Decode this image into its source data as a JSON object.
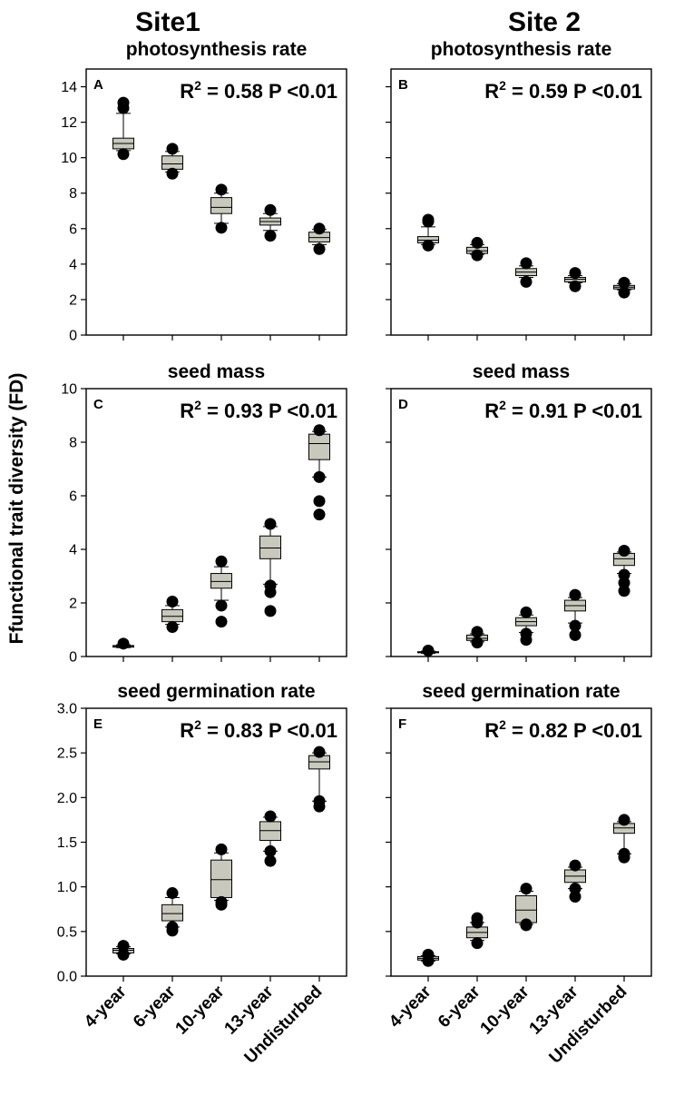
{
  "figure": {
    "ylabel": "Ffunctional trait diversity (FD)",
    "site_titles": [
      "Site1",
      "Site 2"
    ],
    "categories": [
      "4-year",
      "6-year",
      "10-year",
      "13-year",
      "Undisturbed"
    ]
  },
  "colors": {
    "box_fill": "#c8c8bd",
    "outline": "#000000"
  },
  "chart_data": [
    {
      "type": "box",
      "site": "Site1",
      "letter": "A",
      "title": "photosynthesis rate",
      "r2": "0.58",
      "p": "P <0.01",
      "ylim": [
        0,
        15
      ],
      "yticks": [
        0,
        2,
        4,
        6,
        8,
        10,
        12,
        14
      ],
      "categories": [
        "4-year",
        "6-year",
        "10-year",
        "13-year",
        "Undisturbed"
      ],
      "boxes": [
        {
          "whisker_low": 10.4,
          "q1": 10.5,
          "median": 10.8,
          "q3": 11.1,
          "whisker_high": 12.5,
          "outliers": [
            10.2,
            12.8,
            13.1
          ]
        },
        {
          "whisker_low": 9.2,
          "q1": 9.35,
          "median": 9.65,
          "q3": 10.1,
          "whisker_high": 10.35,
          "outliers": [
            9.1,
            10.5
          ]
        },
        {
          "whisker_low": 6.3,
          "q1": 6.85,
          "median": 7.2,
          "q3": 7.75,
          "whisker_high": 8.0,
          "outliers": [
            6.05,
            8.2
          ]
        },
        {
          "whisker_low": 5.9,
          "q1": 6.2,
          "median": 6.4,
          "q3": 6.6,
          "whisker_high": 6.85,
          "outliers": [
            5.6,
            7.05
          ]
        },
        {
          "whisker_low": 5.1,
          "q1": 5.25,
          "median": 5.5,
          "q3": 5.8,
          "whisker_high": 5.95,
          "outliers": [
            4.85,
            6.0
          ]
        }
      ]
    },
    {
      "type": "box",
      "site": "Site 2",
      "letter": "B",
      "title": "photosynthesis rate",
      "r2": "0.59",
      "p": "P <0.01",
      "ylim": [
        0,
        15
      ],
      "yticks": [
        0,
        2,
        4,
        6,
        8,
        10,
        12,
        14
      ],
      "categories": [
        "4-year",
        "6-year",
        "10-year",
        "13-year",
        "Undisturbed"
      ],
      "boxes": [
        {
          "whisker_low": 5.1,
          "q1": 5.2,
          "median": 5.35,
          "q3": 5.55,
          "whisker_high": 6.1,
          "outliers": [
            5.05,
            6.4,
            6.5
          ]
        },
        {
          "whisker_low": 4.55,
          "q1": 4.6,
          "median": 4.75,
          "q3": 4.95,
          "whisker_high": 5.1,
          "outliers": [
            4.5,
            5.2
          ]
        },
        {
          "whisker_low": 3.25,
          "q1": 3.35,
          "median": 3.55,
          "q3": 3.75,
          "whisker_high": 3.9,
          "outliers": [
            3.0,
            4.05
          ]
        },
        {
          "whisker_low": 2.95,
          "q1": 3.0,
          "median": 3.15,
          "q3": 3.25,
          "whisker_high": 3.35,
          "outliers": [
            2.75,
            3.5
          ]
        },
        {
          "whisker_low": 2.55,
          "q1": 2.6,
          "median": 2.7,
          "q3": 2.8,
          "whisker_high": 2.9,
          "outliers": [
            2.4,
            2.95
          ]
        }
      ]
    },
    {
      "type": "box",
      "site": "Site1",
      "letter": "C",
      "title": "seed mass",
      "r2": "0.93",
      "p": "P <0.01",
      "ylim": [
        0,
        10
      ],
      "yticks": [
        0,
        2,
        4,
        6,
        8,
        10
      ],
      "categories": [
        "4-year",
        "6-year",
        "10-year",
        "13-year",
        "Undisturbed"
      ],
      "boxes": [
        {
          "whisker_low": 0.33,
          "q1": 0.35,
          "median": 0.38,
          "q3": 0.41,
          "whisker_high": 0.44,
          "outliers": [
            0.48
          ]
        },
        {
          "whisker_low": 1.2,
          "q1": 1.3,
          "median": 1.5,
          "q3": 1.75,
          "whisker_high": 1.9,
          "outliers": [
            1.1,
            2.05
          ]
        },
        {
          "whisker_low": 2.1,
          "q1": 2.55,
          "median": 2.8,
          "q3": 3.1,
          "whisker_high": 3.35,
          "outliers": [
            1.3,
            1.9,
            3.55
          ]
        },
        {
          "whisker_low": 2.7,
          "q1": 3.65,
          "median": 4.05,
          "q3": 4.5,
          "whisker_high": 4.85,
          "outliers": [
            1.7,
            2.4,
            2.65,
            4.95
          ]
        },
        {
          "whisker_low": 6.7,
          "q1": 7.35,
          "median": 7.95,
          "q3": 8.3,
          "whisker_high": 8.4,
          "outliers": [
            5.3,
            5.8,
            6.7,
            8.45
          ]
        }
      ]
    },
    {
      "type": "box",
      "site": "Site 2",
      "letter": "D",
      "title": "seed mass",
      "r2": "0.91",
      "p": "P <0.01",
      "ylim": [
        0,
        10
      ],
      "yticks": [
        0,
        2,
        4,
        6,
        8,
        10
      ],
      "categories": [
        "4-year",
        "6-year",
        "10-year",
        "13-year",
        "Undisturbed"
      ],
      "boxes": [
        {
          "whisker_low": 0.12,
          "q1": 0.14,
          "median": 0.16,
          "q3": 0.18,
          "whisker_high": 0.2,
          "outliers": [
            0.22
          ]
        },
        {
          "whisker_low": 0.55,
          "q1": 0.6,
          "median": 0.68,
          "q3": 0.8,
          "whisker_high": 0.85,
          "outliers": [
            0.52,
            0.92
          ]
        },
        {
          "whisker_low": 0.9,
          "q1": 1.15,
          "median": 1.3,
          "q3": 1.45,
          "whisker_high": 1.55,
          "outliers": [
            0.62,
            0.85,
            1.65
          ]
        },
        {
          "whisker_low": 1.25,
          "q1": 1.7,
          "median": 1.9,
          "q3": 2.1,
          "whisker_high": 2.2,
          "outliers": [
            0.8,
            1.15,
            2.3
          ]
        },
        {
          "whisker_low": 3.1,
          "q1": 3.4,
          "median": 3.65,
          "q3": 3.85,
          "whisker_high": 3.9,
          "outliers": [
            2.45,
            2.75,
            3.05,
            3.95
          ]
        }
      ]
    },
    {
      "type": "box",
      "site": "Site1",
      "letter": "E",
      "title": "seed germination rate",
      "r2": "0.83",
      "p": "P <0.01",
      "ylim": [
        0,
        3.0
      ],
      "yticks": [
        0.0,
        0.5,
        1.0,
        1.5,
        2.0,
        2.5,
        3.0
      ],
      "yticklabels": [
        "0.0",
        "0.5",
        "1.0",
        "1.5",
        "2.0",
        "2.5",
        "3.0"
      ],
      "categories": [
        "4-year",
        "6-year",
        "10-year",
        "13-year",
        "Undisturbed"
      ],
      "boxes": [
        {
          "whisker_low": 0.25,
          "q1": 0.26,
          "median": 0.29,
          "q3": 0.31,
          "whisker_high": 0.33,
          "outliers": [
            0.24,
            0.34
          ]
        },
        {
          "whisker_low": 0.55,
          "q1": 0.62,
          "median": 0.7,
          "q3": 0.8,
          "whisker_high": 0.88,
          "outliers": [
            0.51,
            0.55,
            0.93
          ]
        },
        {
          "whisker_low": 0.85,
          "q1": 0.88,
          "median": 1.08,
          "q3": 1.3,
          "whisker_high": 1.38,
          "outliers": [
            0.8,
            0.83,
            1.42
          ]
        },
        {
          "whisker_low": 1.4,
          "q1": 1.52,
          "median": 1.63,
          "q3": 1.73,
          "whisker_high": 1.78,
          "outliers": [
            1.29,
            1.4,
            1.79
          ]
        },
        {
          "whisker_low": 1.96,
          "q1": 2.32,
          "median": 2.4,
          "q3": 2.47,
          "whisker_high": 2.5,
          "outliers": [
            1.9,
            1.96,
            2.51
          ]
        }
      ]
    },
    {
      "type": "box",
      "site": "Site 2",
      "letter": "F",
      "title": "seed germination rate",
      "r2": "0.82",
      "p": "P <0.01",
      "ylim": [
        0,
        3.0
      ],
      "yticks": [
        0.0,
        0.5,
        1.0,
        1.5,
        2.0,
        2.5,
        3.0
      ],
      "categories": [
        "4-year",
        "6-year",
        "10-year",
        "13-year",
        "Undisturbed"
      ],
      "boxes": [
        {
          "whisker_low": 0.17,
          "q1": 0.18,
          "median": 0.2,
          "q3": 0.22,
          "whisker_high": 0.23,
          "outliers": [
            0.17,
            0.24
          ]
        },
        {
          "whisker_low": 0.4,
          "q1": 0.43,
          "median": 0.49,
          "q3": 0.55,
          "whisker_high": 0.6,
          "outliers": [
            0.37,
            0.6,
            0.65
          ]
        },
        {
          "whisker_low": 0.58,
          "q1": 0.6,
          "median": 0.74,
          "q3": 0.9,
          "whisker_high": 0.95,
          "outliers": [
            0.57,
            0.58,
            0.98
          ]
        },
        {
          "whisker_low": 0.98,
          "q1": 1.05,
          "median": 1.12,
          "q3": 1.19,
          "whisker_high": 1.22,
          "outliers": [
            0.89,
            0.98,
            1.24
          ]
        },
        {
          "whisker_low": 1.37,
          "q1": 1.6,
          "median": 1.66,
          "q3": 1.71,
          "whisker_high": 1.73,
          "outliers": [
            1.33,
            1.37,
            1.75
          ]
        }
      ]
    }
  ]
}
